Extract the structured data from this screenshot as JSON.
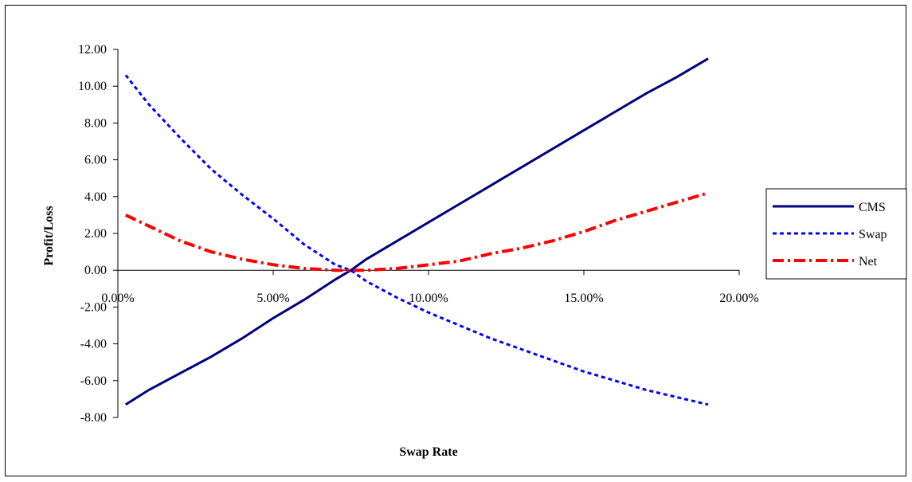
{
  "chart_data": {
    "type": "line",
    "title": "",
    "xlabel": "Swap Rate",
    "ylabel": "Profit/Loss",
    "xlim": [
      0,
      0.2
    ],
    "ylim": [
      -8,
      12
    ],
    "x_ticks": [
      0,
      0.05,
      0.1,
      0.15,
      0.2
    ],
    "x_tick_labels": [
      "0.00%",
      "5.00%",
      "10.00%",
      "15.00%",
      "20.00%"
    ],
    "y_ticks": [
      12,
      10,
      8,
      6,
      4,
      2,
      0,
      -2,
      -4,
      -6,
      -8
    ],
    "y_tick_labels": [
      "12.00",
      "10.00",
      "8.00",
      "6.00",
      "4.00",
      "2.00",
      "0.00",
      "-2.00",
      "-4.00",
      "-6.00",
      "-8.00"
    ],
    "grid": false,
    "legend_position": "right",
    "x": [
      0.0025,
      0.01,
      0.02,
      0.03,
      0.04,
      0.05,
      0.06,
      0.07,
      0.075,
      0.08,
      0.09,
      0.1,
      0.11,
      0.12,
      0.13,
      0.14,
      0.15,
      0.16,
      0.17,
      0.18,
      0.19
    ],
    "series": [
      {
        "name": "CMS",
        "color": "#000080",
        "style": "solid",
        "values": [
          -7.3,
          -6.5,
          -5.6,
          -4.7,
          -3.7,
          -2.6,
          -1.6,
          -0.5,
          0.0,
          0.6,
          1.6,
          2.6,
          3.6,
          4.6,
          5.6,
          6.6,
          7.6,
          8.6,
          9.6,
          10.5,
          11.5
        ]
      },
      {
        "name": "Swap",
        "color": "#0000FF",
        "style": "dotted",
        "values": [
          10.6,
          9.0,
          7.2,
          5.5,
          4.1,
          2.8,
          1.4,
          0.3,
          0.0,
          -0.6,
          -1.5,
          -2.3,
          -3.0,
          -3.7,
          -4.3,
          -4.9,
          -5.5,
          -6.0,
          -6.5,
          -6.9,
          -7.3
        ]
      },
      {
        "name": "Net",
        "color": "#FF0000",
        "style": "dash-dot",
        "values": [
          3.0,
          2.4,
          1.6,
          1.0,
          0.6,
          0.3,
          0.1,
          0.0,
          0.0,
          0.0,
          0.1,
          0.3,
          0.5,
          0.9,
          1.2,
          1.6,
          2.1,
          2.7,
          3.2,
          3.7,
          4.2
        ]
      }
    ]
  }
}
